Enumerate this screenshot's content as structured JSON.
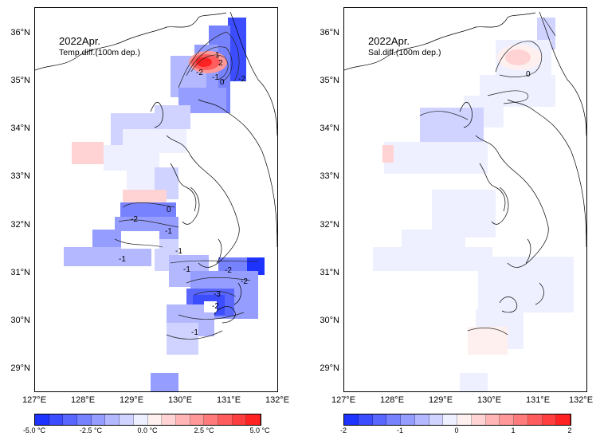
{
  "panels": {
    "left": {
      "title": "2022Apr.",
      "subtitle": "Temp.diff.(100m dep.)",
      "contour_labels": [
        "-2",
        "-1",
        "0",
        "1",
        "2",
        "-2",
        "-2",
        "0",
        "-1",
        "-1",
        "-1",
        "-2",
        "-3",
        "-2",
        "-1",
        "-2",
        "-1"
      ],
      "colorbar": {
        "labels": [
          "-5.0 °C",
          "-2.5 °C",
          "0.0 °C",
          "2.5 °C",
          "5.0 °C"
        ],
        "colors": [
          "#1f33ff",
          "#3c4dff",
          "#5a67ff",
          "#7782ff",
          "#959dff",
          "#b3b8ff",
          "#d0d3ff",
          "#eef0ff",
          "#fff0f0",
          "#ffd3d3",
          "#ffb5b5",
          "#ff9898",
          "#ff7a7a",
          "#ff5d5d",
          "#ff3f3f",
          "#ff2222"
        ]
      }
    },
    "right": {
      "title": "2022Apr.",
      "subtitle": "Sal.diff.(100m dep.)",
      "contour_labels": [
        "0"
      ],
      "colorbar": {
        "labels": [
          "-2",
          "-1",
          "0",
          "1",
          "2"
        ],
        "colors": [
          "#1f33ff",
          "#3c4dff",
          "#5a67ff",
          "#7782ff",
          "#959dff",
          "#b3b8ff",
          "#d0d3ff",
          "#eef0ff",
          "#fff0f0",
          "#ffd3d3",
          "#ffb5b5",
          "#ff9898",
          "#ff7a7a",
          "#ff5d5d",
          "#ff3f3f",
          "#ff2222"
        ]
      }
    }
  },
  "axes": {
    "lat_labels": [
      "36°N",
      "35°N",
      "34°N",
      "33°N",
      "32°N",
      "31°N",
      "30°N",
      "29°N"
    ],
    "lon_labels": [
      "127°E",
      "128°E",
      "129°E",
      "130°E",
      "131°E",
      "132°E"
    ]
  }
}
